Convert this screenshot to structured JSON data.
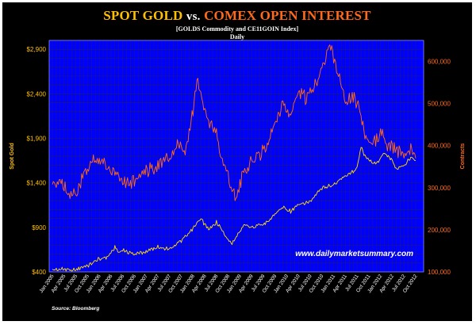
{
  "header": {
    "title_gold": "SPOT GOLD",
    "title_vs": "vs.",
    "title_oi": "COMEX OPEN INTEREST",
    "subtitle_line1": "[GOLDS Commodity  and CE11GOIN Index]",
    "subtitle_line2": "Daily"
  },
  "watermark": "www.dailymarketsummary.com",
  "source": "Source: Bloomberg",
  "colors": {
    "plot_background": "#0000ff",
    "gold_line": "#ffe000",
    "open_interest_line": "#ff6a1a",
    "left_axis_text": "#ffc000",
    "right_axis_text": "#ff6a1a",
    "frame": "#000000"
  },
  "chart_data": {
    "type": "line",
    "grid": true,
    "x_ticks": [
      "Jan 2005",
      "Apr 2005",
      "Jul 2005",
      "Oct 2005",
      "Jan 2006",
      "Apr 2006",
      "Jul 2006",
      "Oct 2006",
      "Jan 2007",
      "Apr 2007",
      "Jul 2007",
      "Oct 2007",
      "Jan 2008",
      "Apr 2008",
      "Jul 2008",
      "Oct 2008",
      "Jan 2009",
      "Apr 2009",
      "Jul 2009",
      "Oct 2009",
      "Jan 2010",
      "Apr 2010",
      "Jul 2010",
      "Oct 2010",
      "Jan 2011",
      "Apr 2011",
      "Jul 2011",
      "Oct 2011",
      "Jan 2012",
      "Apr 2012",
      "Jul 2012",
      "Oct 2012"
    ],
    "left_axis": {
      "label": "Spot Gold",
      "range": [
        400,
        3000
      ],
      "ticks": [
        400,
        900,
        1400,
        1900,
        2400,
        2900
      ],
      "tick_labels": [
        "$400",
        "$900",
        "$1,400",
        "$1,900",
        "$2,400",
        "$2,900"
      ]
    },
    "right_axis": {
      "label": "Contracts",
      "range": [
        100000,
        650000
      ],
      "ticks": [
        100000,
        200000,
        300000,
        400000,
        500000,
        600000
      ],
      "tick_labels": [
        "100,000",
        "200,000",
        "300,000",
        "400,000",
        "500,000",
        "600,000"
      ]
    },
    "series": [
      {
        "name": "Spot Gold",
        "axis": "left",
        "x": [
          "2005-01",
          "2005-04",
          "2005-07",
          "2005-10",
          "2006-01",
          "2006-03",
          "2006-05",
          "2006-06",
          "2006-07",
          "2006-10",
          "2007-01",
          "2007-04",
          "2007-07",
          "2007-10",
          "2007-12",
          "2008-03",
          "2008-05",
          "2008-07",
          "2008-09",
          "2008-10",
          "2008-11",
          "2009-01",
          "2009-02",
          "2009-04",
          "2009-07",
          "2009-10",
          "2009-12",
          "2010-02",
          "2010-04",
          "2010-07",
          "2010-10",
          "2011-01",
          "2011-04",
          "2011-07",
          "2011-08",
          "2011-09",
          "2011-10",
          "2011-12",
          "2012-01",
          "2012-02",
          "2012-04",
          "2012-05",
          "2012-07",
          "2012-09",
          "2012-10"
        ],
        "values": [
          425,
          430,
          425,
          470,
          550,
          560,
          680,
          620,
          640,
          600,
          630,
          680,
          660,
          750,
          830,
          1000,
          870,
          960,
          830,
          750,
          720,
          860,
          940,
          900,
          930,
          1050,
          1130,
          1080,
          1150,
          1190,
          1340,
          1380,
          1480,
          1560,
          1820,
          1700,
          1650,
          1620,
          1670,
          1740,
          1650,
          1560,
          1590,
          1700,
          1650
        ]
      },
      {
        "name": "COMEX Open Interest",
        "axis": "right",
        "x": [
          "2005-01",
          "2005-03",
          "2005-05",
          "2005-07",
          "2005-09",
          "2005-11",
          "2006-01",
          "2006-03",
          "2006-05",
          "2006-07",
          "2006-09",
          "2006-11",
          "2007-01",
          "2007-03",
          "2007-05",
          "2007-07",
          "2007-09",
          "2007-11",
          "2008-01",
          "2008-02",
          "2008-03",
          "2008-05",
          "2008-07",
          "2008-08",
          "2008-10",
          "2008-11",
          "2008-12",
          "2009-02",
          "2009-04",
          "2009-06",
          "2009-08",
          "2009-10",
          "2009-12",
          "2010-02",
          "2010-04",
          "2010-06",
          "2010-08",
          "2010-10",
          "2010-11",
          "2010-12",
          "2011-02",
          "2011-04",
          "2011-06",
          "2011-08",
          "2011-09",
          "2011-11",
          "2012-01",
          "2012-03",
          "2012-05",
          "2012-07",
          "2012-09",
          "2012-10"
        ],
        "values": [
          300000,
          320000,
          290000,
          280000,
          330000,
          360000,
          370000,
          350000,
          340000,
          320000,
          310000,
          330000,
          340000,
          350000,
          360000,
          370000,
          400000,
          380000,
          480000,
          560000,
          520000,
          460000,
          430000,
          380000,
          330000,
          300000,
          270000,
          340000,
          360000,
          380000,
          400000,
          460000,
          500000,
          470000,
          530000,
          510000,
          540000,
          590000,
          610000,
          640000,
          580000,
          510000,
          520000,
          480000,
          420000,
          400000,
          430000,
          400000,
          390000,
          380000,
          400000,
          370000
        ]
      }
    ]
  }
}
